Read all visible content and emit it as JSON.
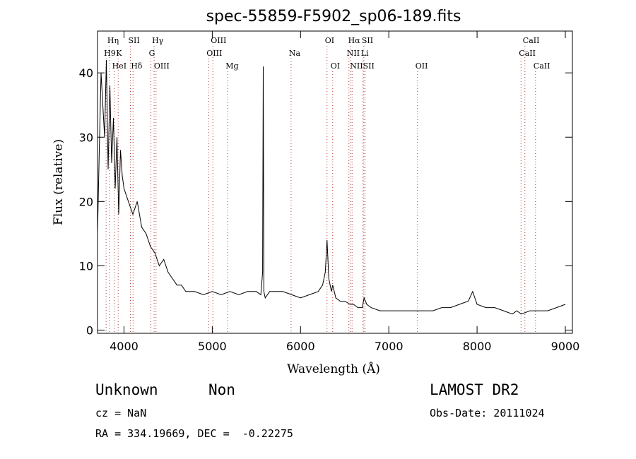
{
  "chart_data": {
    "type": "line",
    "title": "spec-55859-F5902_sp06-189.fits",
    "xlabel": "Wavelength (Å)",
    "ylabel": "Flux (relative)",
    "xlim": [
      3700,
      9080
    ],
    "ylim": [
      -0.5,
      46.5
    ],
    "xticks": [
      4000,
      5000,
      6000,
      7000,
      8000,
      9000
    ],
    "yticks": [
      0,
      10,
      20,
      30,
      40
    ],
    "series": [
      {
        "x": [
          3700,
          3720,
          3740,
          3760,
          3780,
          3800,
          3820,
          3840,
          3860,
          3880,
          3900,
          3920,
          3940,
          3960,
          3980,
          4000,
          4050,
          4100,
          4150,
          4200,
          4250,
          4300,
          4350,
          4400,
          4450,
          4500,
          4550,
          4600,
          4650,
          4700,
          4800,
          4900,
          5000,
          5100,
          5200,
          5300,
          5400,
          5500,
          5550,
          5570,
          5577,
          5585,
          5600,
          5650,
          5700,
          5800,
          5900,
          6000,
          6100,
          6200,
          6250,
          6280,
          6300,
          6320,
          6350,
          6364,
          6400,
          6450,
          6500,
          6563,
          6600,
          6650,
          6700,
          6720,
          6750,
          6800,
          6900,
          7000,
          7100,
          7200,
          7300,
          7400,
          7500,
          7600,
          7700,
          7800,
          7900,
          7950,
          8000,
          8100,
          8200,
          8300,
          8400,
          8450,
          8500,
          8600,
          8700,
          8800,
          8900,
          9000
        ],
        "y": [
          15,
          28,
          40,
          35,
          30,
          42,
          25,
          38,
          26,
          33,
          22,
          30,
          18,
          28,
          24,
          22,
          20,
          18,
          20,
          16,
          15,
          13,
          12,
          10,
          11,
          9,
          8,
          7,
          7,
          6,
          6,
          5.5,
          6,
          5.5,
          6,
          5.5,
          6,
          6,
          5.5,
          9,
          41,
          6,
          5,
          6,
          6,
          6,
          5.5,
          5,
          5.5,
          6,
          7,
          9,
          14,
          8,
          6,
          7,
          5,
          4.5,
          4.5,
          4,
          4,
          3.5,
          3.5,
          5,
          4,
          3.5,
          3,
          3,
          3,
          3,
          3,
          3,
          3,
          3.5,
          3.5,
          4,
          4.5,
          6,
          4,
          3.5,
          3.5,
          3,
          2.5,
          3,
          2.5,
          3,
          3,
          3,
          3.5,
          4
        ]
      }
    ],
    "emission_lines": [
      {
        "label": "Hη",
        "x": 3835,
        "row": 0
      },
      {
        "label": "H9",
        "x": 3797,
        "row": 1
      },
      {
        "label": "K",
        "x": 3934,
        "row": 1
      },
      {
        "label": "HeI",
        "x": 3889,
        "row": 2
      },
      {
        "label": "SII",
        "x": 4072,
        "row": 0
      },
      {
        "label": "Hδ",
        "x": 4102,
        "row": 2
      },
      {
        "label": "Hγ",
        "x": 4341,
        "row": 0
      },
      {
        "label": "G",
        "x": 4305,
        "row": 1
      },
      {
        "label": "OIII",
        "x": 4363,
        "row": 2
      },
      {
        "label": "OIII",
        "x": 5007,
        "row": 0
      },
      {
        "label": "OIII",
        "x": 4959,
        "row": 1
      },
      {
        "label": "Mg",
        "x": 5175,
        "row": 2
      },
      {
        "label": "Na",
        "x": 5893,
        "row": 1
      },
      {
        "label": "OI",
        "x": 6300,
        "row": 0
      },
      {
        "label": "OI",
        "x": 6364,
        "row": 2
      },
      {
        "label": "Hα",
        "x": 6563,
        "row": 0
      },
      {
        "label": "SII",
        "x": 6717,
        "row": 0
      },
      {
        "label": "NII",
        "x": 6548,
        "row": 1
      },
      {
        "label": "Li",
        "x": 6708,
        "row": 1
      },
      {
        "label": "NII",
        "x": 6584,
        "row": 2
      },
      {
        "label": "SII",
        "x": 6731,
        "row": 2
      },
      {
        "label": "OII",
        "x": 7325,
        "row": 2
      },
      {
        "label": "CaII",
        "x": 8542,
        "row": 0
      },
      {
        "label": "CaII",
        "x": 8498,
        "row": 1
      },
      {
        "label": "CaII",
        "x": 8662,
        "row": 2
      }
    ]
  },
  "info": {
    "classification": "Unknown",
    "subclass": "Non",
    "survey": "LAMOST DR2",
    "redshift": "cz = NaN",
    "obs_date": "Obs-Date: 20111024",
    "coords": "RA = 334.19669, DEC =  -0.22275"
  }
}
